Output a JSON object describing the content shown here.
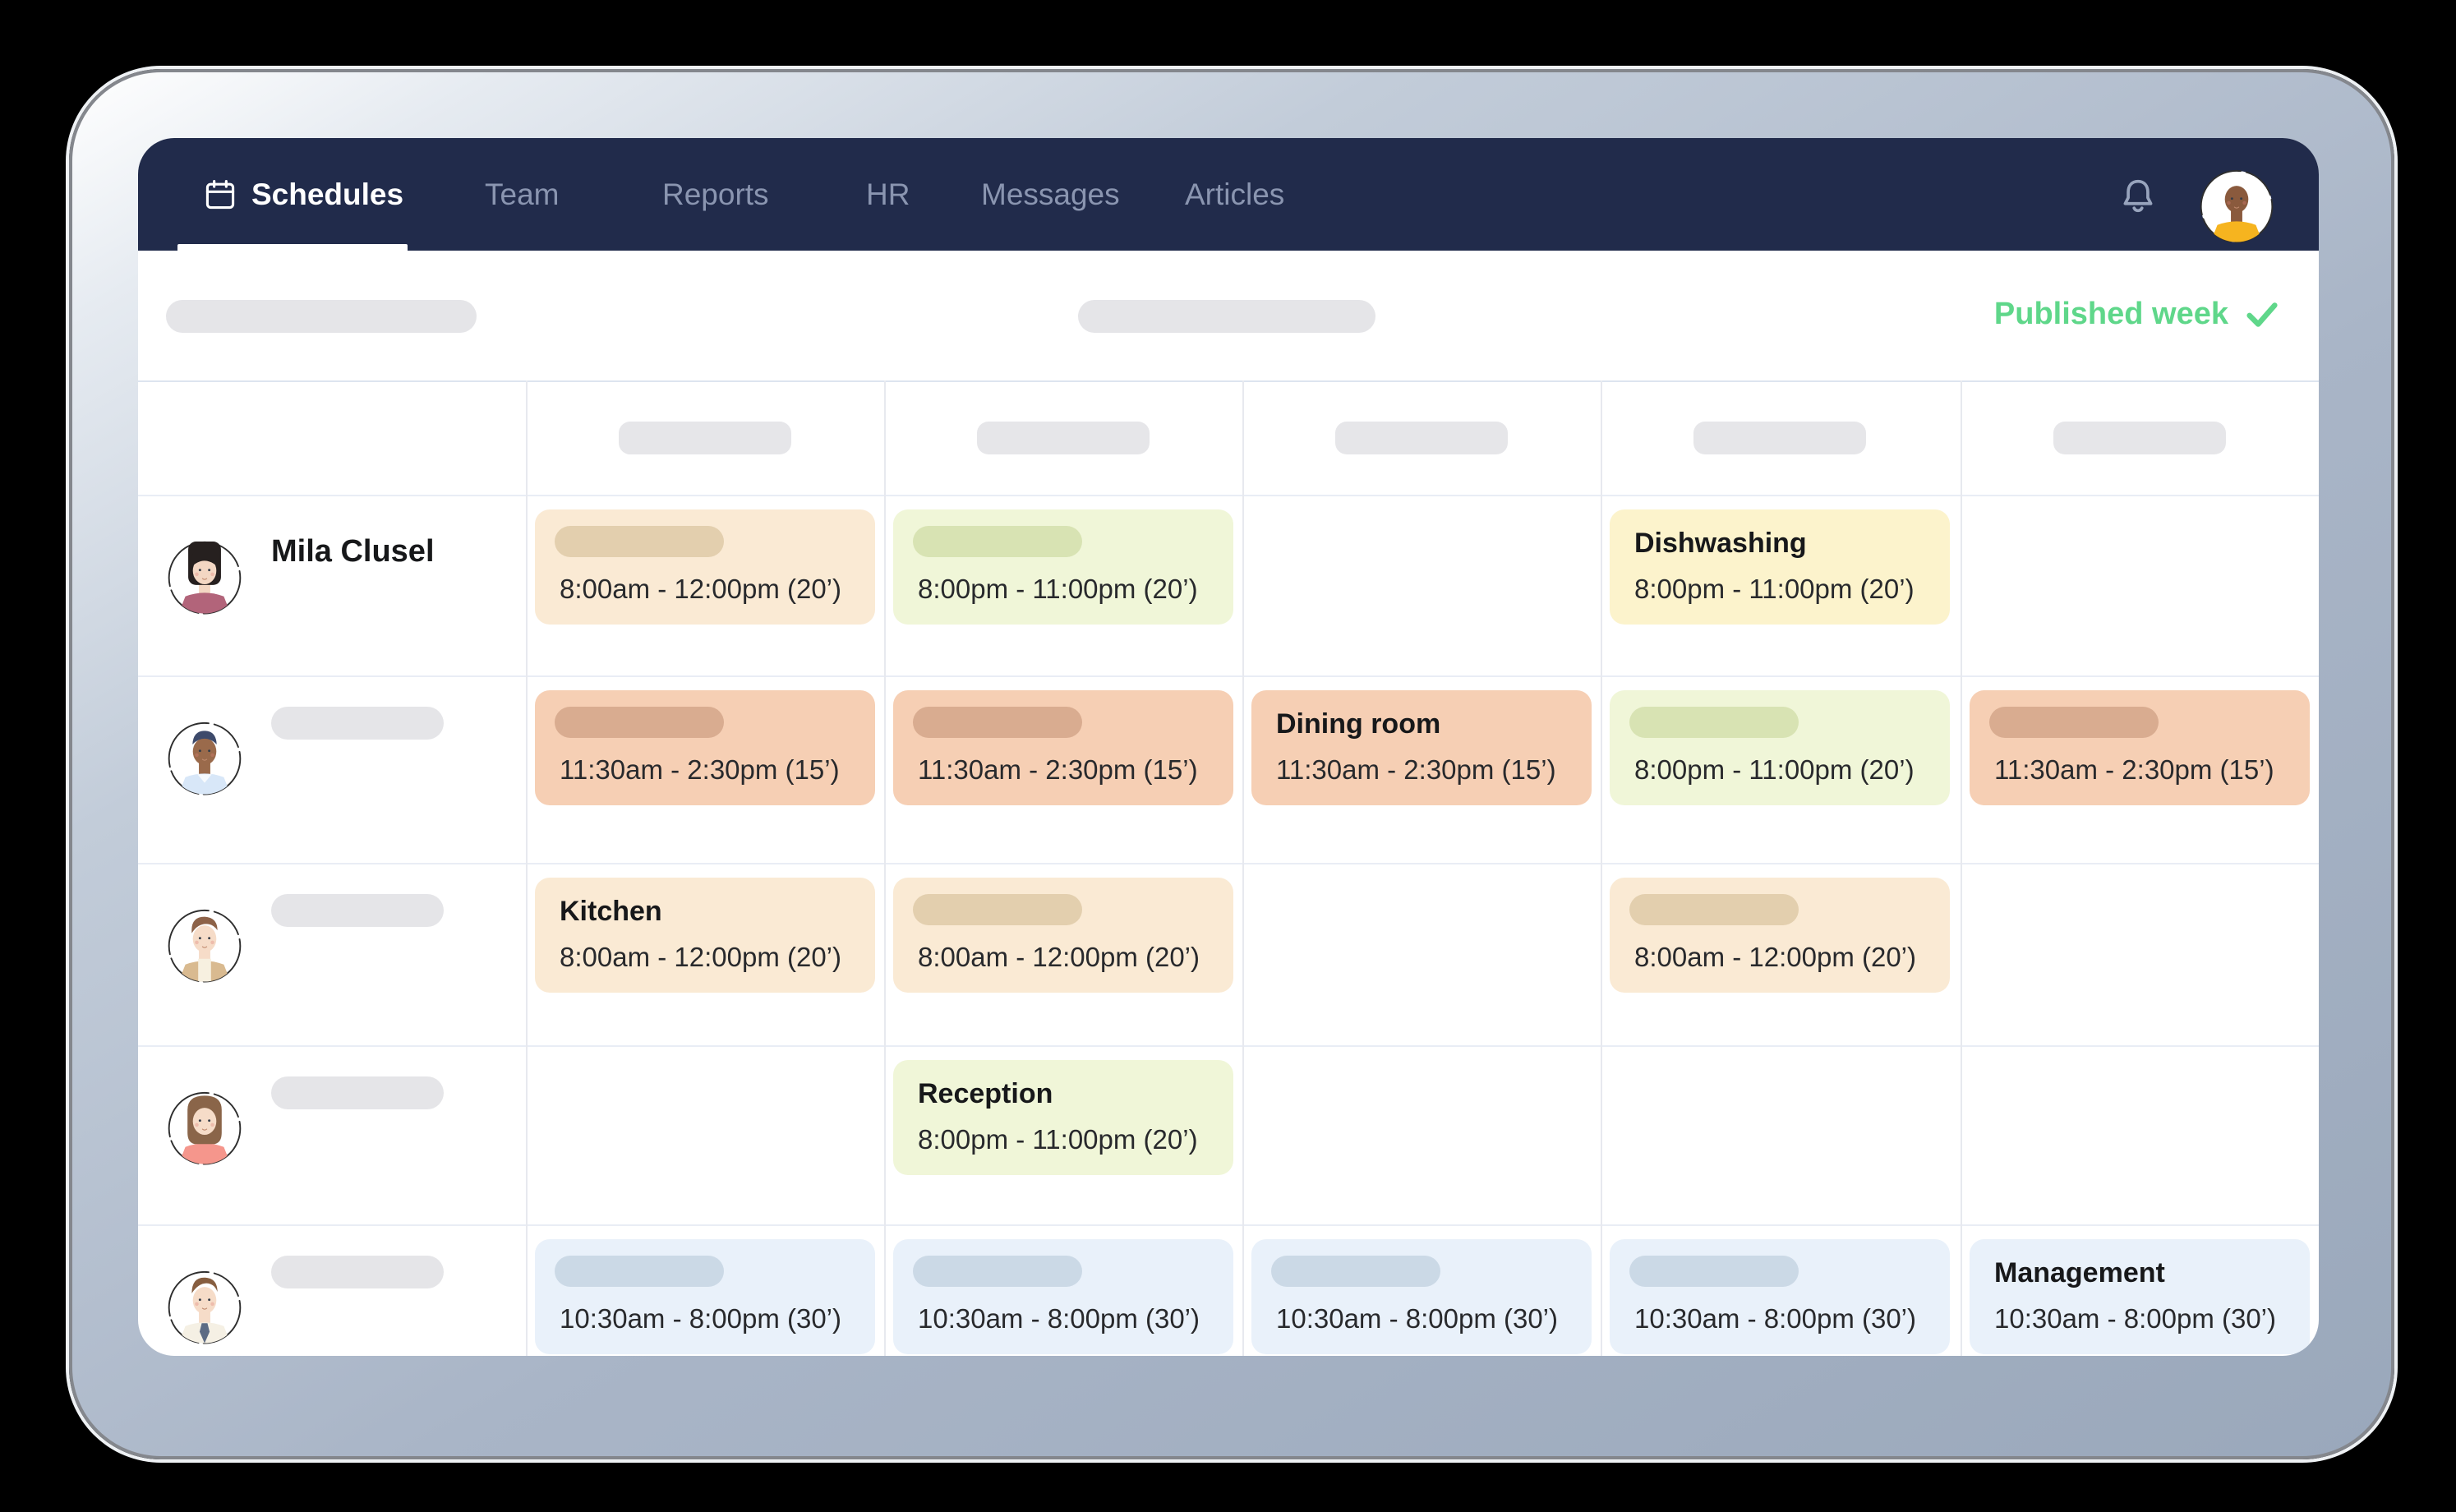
{
  "nav": {
    "background": "#212b4b",
    "inactive_color": "#8a95b0",
    "items": [
      {
        "label": "Schedules",
        "active": true,
        "icon": "calendar"
      },
      {
        "label": "Team",
        "active": false
      },
      {
        "label": "Reports",
        "active": false
      },
      {
        "label": "HR",
        "active": false
      },
      {
        "label": "Messages",
        "active": false
      },
      {
        "label": "Articles",
        "active": false
      }
    ],
    "bell_icon": "bell",
    "profile": {
      "avatar_style": "updo",
      "skin": "#8a5a3d",
      "hair": "#2a211e",
      "shirt": "#f6b41f"
    }
  },
  "toolbar": {
    "published_label": "Published week",
    "published_color": "#5fd78a",
    "check_icon": "check"
  },
  "palette": {
    "peach": {
      "bg": "#faead4",
      "pill": "#e3cfae"
    },
    "green": {
      "bg": "#f0f6d8",
      "pill": "#d8e3b3"
    },
    "yellow": {
      "bg": "#fcf3cc",
      "pill": "#ead9a0"
    },
    "salmon": {
      "bg": "#f6cfb4",
      "pill": "#d9ac90"
    },
    "blue": {
      "bg": "#e9f1fa",
      "pill": "#cbd9e6"
    }
  },
  "schedule": {
    "day_columns": 5,
    "employees": [
      {
        "name": "Mila Clusel",
        "avatar": {
          "style": "bob",
          "skin": "#f3d7c3",
          "hair": "#26201f",
          "shirt": "#b2647a"
        },
        "shifts": [
          {
            "variant": "peach",
            "title": null,
            "time": "8:00am - 12:00pm (20’)"
          },
          {
            "variant": "green",
            "title": null,
            "time": "8:00pm - 11:00pm (20’)"
          },
          null,
          {
            "variant": "yellow",
            "title": "Dishwashing",
            "time": "8:00pm - 11:00pm (20’)"
          },
          null
        ]
      },
      {
        "name": null,
        "avatar": {
          "style": "short",
          "skin": "#9a6a4b",
          "hair": "#3d4a6b",
          "shirt": "#d8e7f8"
        },
        "shifts": [
          {
            "variant": "salmon",
            "title": null,
            "time": "11:30am - 2:30pm (15’)"
          },
          {
            "variant": "salmon",
            "title": null,
            "time": "11:30am - 2:30pm (15’)"
          },
          {
            "variant": "salmon",
            "title": "Dining room",
            "time": "11:30am - 2:30pm (15’)"
          },
          {
            "variant": "green",
            "title": null,
            "time": "8:00pm - 11:00pm (20’)"
          },
          {
            "variant": "salmon",
            "title": null,
            "time": "11:30am - 2:30pm (15’)"
          }
        ]
      },
      {
        "name": null,
        "avatar": {
          "style": "side",
          "skin": "#f6dcc8",
          "hair": "#8d6248",
          "shirt": "#d9ba90"
        },
        "shifts": [
          {
            "variant": "peach",
            "title": "Kitchen",
            "time": "8:00am - 12:00pm (20’)"
          },
          {
            "variant": "peach",
            "title": null,
            "time": "8:00am - 12:00pm (20’)"
          },
          null,
          {
            "variant": "peach",
            "title": null,
            "time": "8:00am - 12:00pm (20’)"
          },
          null
        ]
      },
      {
        "name": null,
        "avatar": {
          "style": "shoulder",
          "skin": "#f6dcc8",
          "hair": "#8a6549",
          "shirt": "#f5968c"
        },
        "shifts": [
          null,
          {
            "variant": "green",
            "title": "Reception",
            "time": "8:00pm - 11:00pm (20’)"
          },
          null,
          null,
          null
        ]
      },
      {
        "name": null,
        "avatar": {
          "style": "swept",
          "skin": "#f6dcc8",
          "hair": "#875e40",
          "shirt": "#f5f0e4",
          "tie": "#5d6b84"
        },
        "shifts": [
          {
            "variant": "blue",
            "title": null,
            "time": "10:30am - 8:00pm (30’)"
          },
          {
            "variant": "blue",
            "title": null,
            "time": "10:30am - 8:00pm (30’)"
          },
          {
            "variant": "blue",
            "title": null,
            "time": "10:30am - 8:00pm (30’)"
          },
          {
            "variant": "blue",
            "title": null,
            "time": "10:30am - 8:00pm (30’)"
          },
          {
            "variant": "blue",
            "title": "Management",
            "time": "10:30am - 8:00pm (30’)"
          }
        ]
      }
    ]
  }
}
